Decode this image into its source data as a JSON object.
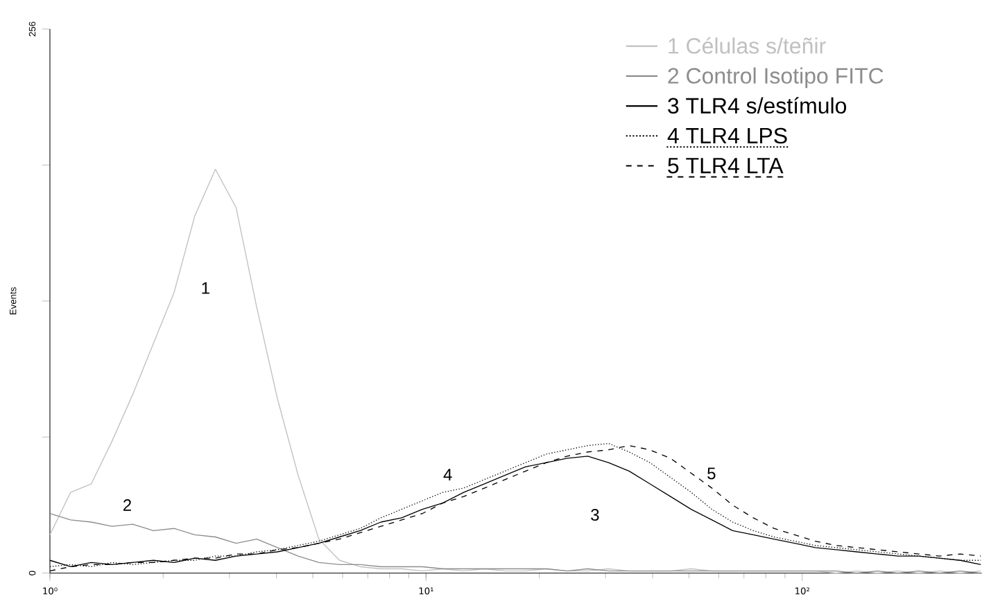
{
  "chart_data": {
    "type": "line",
    "ylabel": "Events",
    "x": [
      1,
      1.135,
      1.288,
      1.462,
      1.66,
      1.884,
      2.138,
      2.427,
      2.754,
      3.126,
      3.548,
      4.027,
      4.571,
      5.188,
      5.888,
      6.683,
      7.586,
      8.61,
      9.772,
      11.09,
      12.59,
      14.29,
      16.22,
      18.41,
      20.89,
      23.71,
      26.92,
      30.55,
      34.67,
      39.36,
      44.67,
      50.7,
      57.54,
      65.31,
      74.13,
      84.14,
      95.5,
      108.4,
      123,
      139.6,
      158.5,
      179.9,
      204.2,
      231.7,
      263,
      298.5
    ],
    "series": [
      {
        "name": "1 Células s/teñir",
        "color": "#c0c0c0",
        "line_style": "solid",
        "values": [
          18,
          38,
          42,
          62,
          84,
          108,
          132,
          168,
          190,
          172,
          125,
          82,
          46,
          16,
          6,
          3,
          2,
          2,
          1,
          2,
          1,
          2,
          1,
          1,
          2,
          1,
          1,
          2,
          1,
          1,
          1,
          2,
          1,
          1,
          1,
          1,
          1,
          1,
          0,
          1,
          0,
          1,
          0,
          1,
          0,
          1
        ]
      },
      {
        "name": "2 Control Isotipo  FITC",
        "color": "#8c8c8c",
        "line_style": "solid",
        "values": [
          28,
          25,
          24,
          22,
          23,
          20,
          21,
          18,
          17,
          14,
          16,
          12,
          8,
          5,
          4,
          4,
          3,
          3,
          3,
          2,
          2,
          2,
          2,
          2,
          2,
          1,
          2,
          1,
          1,
          1,
          1,
          1,
          1,
          1,
          1,
          1,
          1,
          1,
          1,
          0,
          1,
          0,
          1,
          0,
          1,
          0
        ]
      },
      {
        "name": "3 TLR4 s/estímulo",
        "color": "#000000",
        "line_style": "solid",
        "values": [
          6,
          3,
          5,
          4,
          5,
          6,
          5,
          7,
          6,
          8,
          9,
          10,
          12,
          14,
          17,
          20,
          24,
          26,
          30,
          33,
          38,
          42,
          46,
          50,
          52,
          54,
          55,
          52,
          48,
          42,
          36,
          30,
          25,
          20,
          18,
          16,
          14,
          12,
          11,
          10,
          9,
          8,
          8,
          7,
          6,
          4
        ]
      },
      {
        "name": "4 TLR4 LPS",
        "color": "#000000",
        "line_style": "dotted",
        "values": [
          3,
          4,
          3,
          5,
          4,
          5,
          6,
          6,
          8,
          8,
          10,
          11,
          13,
          15,
          18,
          21,
          26,
          30,
          34,
          38,
          40,
          44,
          48,
          52,
          56,
          58,
          60,
          61,
          57,
          52,
          45,
          38,
          30,
          24,
          20,
          17,
          15,
          13,
          12,
          11,
          10,
          9,
          8,
          7,
          6,
          6
        ]
      },
      {
        "name": "5 TLR4 LTA",
        "color": "#000000",
        "line_style": "dashed",
        "values": [
          1,
          3,
          4,
          4,
          5,
          5,
          6,
          7,
          7,
          9,
          9,
          11,
          12,
          14,
          16,
          19,
          22,
          25,
          28,
          33,
          36,
          40,
          44,
          48,
          52,
          55,
          57,
          58,
          60,
          58,
          54,
          47,
          40,
          32,
          26,
          21,
          18,
          15,
          13,
          12,
          11,
          10,
          9,
          8,
          9,
          8
        ]
      }
    ],
    "log": "x",
    "xlim": [
      1,
      300
    ],
    "xticks": [
      {
        "value": 1,
        "label": "10⁰"
      },
      {
        "value": 10,
        "label": "10¹"
      },
      {
        "value": 100,
        "label": "10²"
      }
    ],
    "ylim": [
      0,
      256
    ],
    "yticks": [
      0,
      {
        "value": 64,
        "label": null
      },
      {
        "value": 128,
        "label": null
      },
      {
        "value": 192,
        "label": null
      },
      256
    ],
    "grid": false,
    "legend": "top right",
    "annotations": [
      "1",
      "2",
      "3",
      "4",
      "5"
    ]
  }
}
